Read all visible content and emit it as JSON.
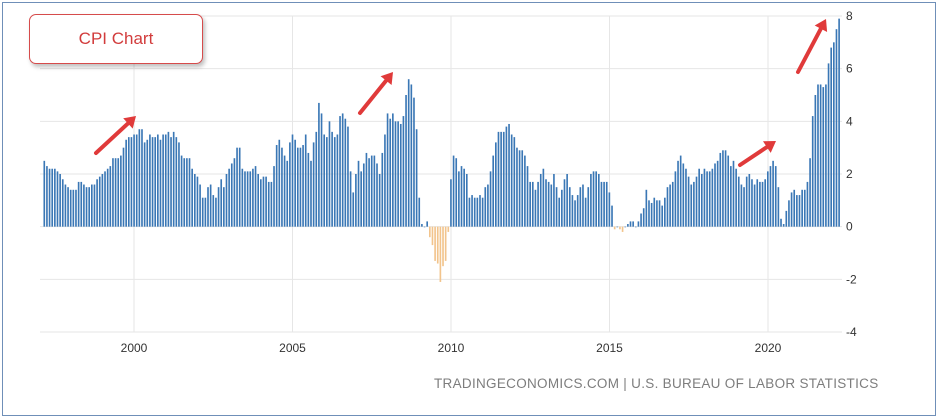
{
  "callout": {
    "label": "CPI Chart"
  },
  "source": "TRADINGECONOMICS.COM | U.S. BUREAU OF LABOR STATISTICS",
  "colors": {
    "positive": "#3a77b5",
    "negative": "#f2c48c",
    "grid": "#e6e6e6",
    "arrow": "#e03a3a"
  },
  "chart_data": {
    "type": "bar",
    "title": "",
    "xlabel": "",
    "ylabel": "",
    "ylim": [
      -4,
      8
    ],
    "y_ticks": [
      -4,
      -2,
      0,
      2,
      4,
      6,
      8
    ],
    "x_ticks": [
      2000,
      2005,
      2010,
      2015,
      2020
    ],
    "x_start": 1997.17,
    "x_step": 0.0833,
    "grid": true,
    "values": [
      2.5,
      2.3,
      2.2,
      2.2,
      2.2,
      2.1,
      2.0,
      1.8,
      1.6,
      1.5,
      1.4,
      1.4,
      1.4,
      1.7,
      1.7,
      1.6,
      1.5,
      1.5,
      1.6,
      1.6,
      1.8,
      1.9,
      2.0,
      2.1,
      2.2,
      2.3,
      2.6,
      2.6,
      2.6,
      2.7,
      3.0,
      3.3,
      3.4,
      3.4,
      3.5,
      3.5,
      3.7,
      3.7,
      3.2,
      3.3,
      3.5,
      3.4,
      3.4,
      3.5,
      3.3,
      3.5,
      3.5,
      3.6,
      3.4,
      3.6,
      3.4,
      3.2,
      2.7,
      2.6,
      2.6,
      2.6,
      2.2,
      2.0,
      1.9,
      1.6,
      1.1,
      1.1,
      1.5,
      1.6,
      1.2,
      1.1,
      1.5,
      1.8,
      1.5,
      2.0,
      2.2,
      2.4,
      2.6,
      3.0,
      3.0,
      2.2,
      2.1,
      2.1,
      2.1,
      2.2,
      2.3,
      2.0,
      1.8,
      1.9,
      1.9,
      1.7,
      1.7,
      2.3,
      3.1,
      3.3,
      3.0,
      2.7,
      2.5,
      3.2,
      3.5,
      3.3,
      3.0,
      3.0,
      3.1,
      3.5,
      2.8,
      2.5,
      3.2,
      3.6,
      4.7,
      4.3,
      3.5,
      3.4,
      4.0,
      3.6,
      3.4,
      3.5,
      4.2,
      4.3,
      4.1,
      3.8,
      2.1,
      1.3,
      2.0,
      2.5,
      2.1,
      2.4,
      2.8,
      2.6,
      2.7,
      2.7,
      2.4,
      2.0,
      2.8,
      3.5,
      4.3,
      4.1,
      4.3,
      4.0,
      4.0,
      3.9,
      4.2,
      5.0,
      5.6,
      5.4,
      4.9,
      3.7,
      1.1,
      0.1,
      0.0,
      0.2,
      -0.4,
      -0.7,
      -1.3,
      -1.4,
      -2.1,
      -1.5,
      -1.3,
      -0.2,
      1.8,
      2.7,
      2.6,
      2.1,
      2.3,
      2.2,
      2.0,
      1.1,
      1.2,
      1.1,
      1.1,
      1.2,
      1.1,
      1.5,
      1.6,
      2.1,
      2.7,
      3.2,
      3.6,
      3.6,
      3.6,
      3.8,
      3.9,
      3.5,
      3.4,
      3.0,
      2.9,
      2.9,
      2.7,
      2.3,
      1.7,
      1.7,
      1.4,
      1.7,
      2.0,
      2.2,
      1.8,
      1.7,
      1.6,
      2.0,
      1.5,
      1.1,
      1.4,
      1.8,
      2.0,
      1.5,
      1.2,
      1.0,
      1.2,
      1.5,
      1.6,
      1.1,
      1.5,
      2.0,
      2.1,
      2.1,
      2.0,
      1.7,
      1.7,
      1.7,
      1.3,
      0.8,
      -0.1,
      0.0,
      -0.1,
      -0.2,
      0.0,
      0.1,
      0.2,
      0.2,
      0.0,
      0.2,
      0.5,
      0.7,
      1.4,
      1.0,
      0.9,
      1.1,
      1.0,
      1.0,
      0.8,
      1.1,
      1.5,
      1.6,
      1.7,
      2.1,
      2.5,
      2.7,
      2.4,
      2.2,
      1.9,
      1.6,
      1.7,
      1.9,
      2.2,
      2.0,
      2.2,
      2.1,
      2.1,
      2.2,
      2.4,
      2.5,
      2.8,
      2.9,
      2.9,
      2.7,
      2.3,
      2.5,
      2.2,
      1.9,
      1.6,
      1.5,
      1.9,
      2.0,
      1.8,
      1.6,
      1.8,
      1.7,
      1.7,
      1.8,
      2.1,
      2.3,
      2.5,
      2.3,
      1.5,
      0.3,
      0.1,
      0.6,
      1.0,
      1.3,
      1.4,
      1.2,
      1.2,
      1.4,
      1.4,
      1.7,
      2.6,
      4.2,
      5.0,
      5.4,
      5.4,
      5.3,
      5.4,
      6.2,
      6.8,
      7.0,
      7.5,
      7.9
    ]
  }
}
